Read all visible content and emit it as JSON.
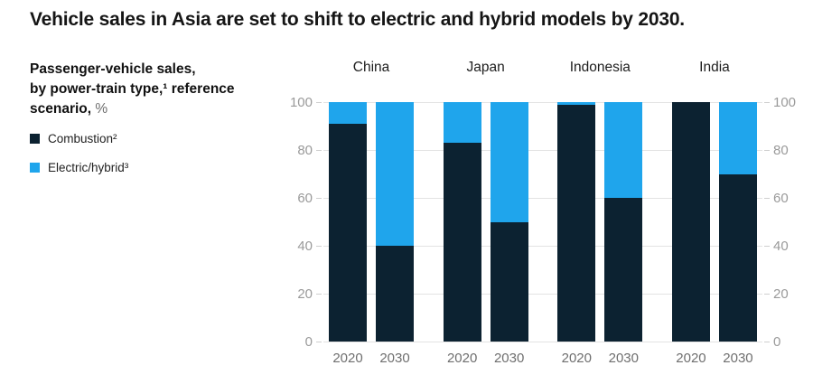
{
  "title": "Vehicle sales in Asia are set to shift to electric and hybrid models by 2030.",
  "subtitle": {
    "line1": "Passenger-vehicle sales,",
    "line2": "by power-train type,¹ reference",
    "line3": "scenario,",
    "unit": "%"
  },
  "legend": [
    {
      "label": "Combustion²",
      "color": "#0c2231"
    },
    {
      "label": "Electric/hybrid³",
      "color": "#1fa5ec"
    }
  ],
  "chart_data": {
    "type": "bar",
    "stacked": true,
    "title": "Vehicle sales in Asia are set to shift to electric and hybrid models by 2030.",
    "subtitle": "Passenger-vehicle sales, by power-train type,¹ reference scenario, %",
    "groups": [
      "China",
      "Japan",
      "Indonesia",
      "India"
    ],
    "categories": [
      "2020",
      "2030"
    ],
    "series": [
      {
        "name": "Combustion²",
        "color": "#0c2231",
        "values": {
          "China": [
            91,
            40
          ],
          "Japan": [
            83,
            50
          ],
          "Indonesia": [
            99,
            60
          ],
          "India": [
            100,
            70
          ]
        }
      },
      {
        "name": "Electric/hybrid³",
        "color": "#1fa5ec",
        "values": {
          "China": [
            9,
            60
          ],
          "Japan": [
            17,
            50
          ],
          "Indonesia": [
            1,
            40
          ],
          "India": [
            0,
            30
          ]
        }
      }
    ],
    "ylim": [
      0,
      100
    ],
    "yticks": [
      0,
      20,
      40,
      60,
      80,
      100
    ],
    "grid": true,
    "axis_sides": [
      "left",
      "right"
    ],
    "legend_position": "left",
    "gridline_color": "#e3e3e3"
  }
}
